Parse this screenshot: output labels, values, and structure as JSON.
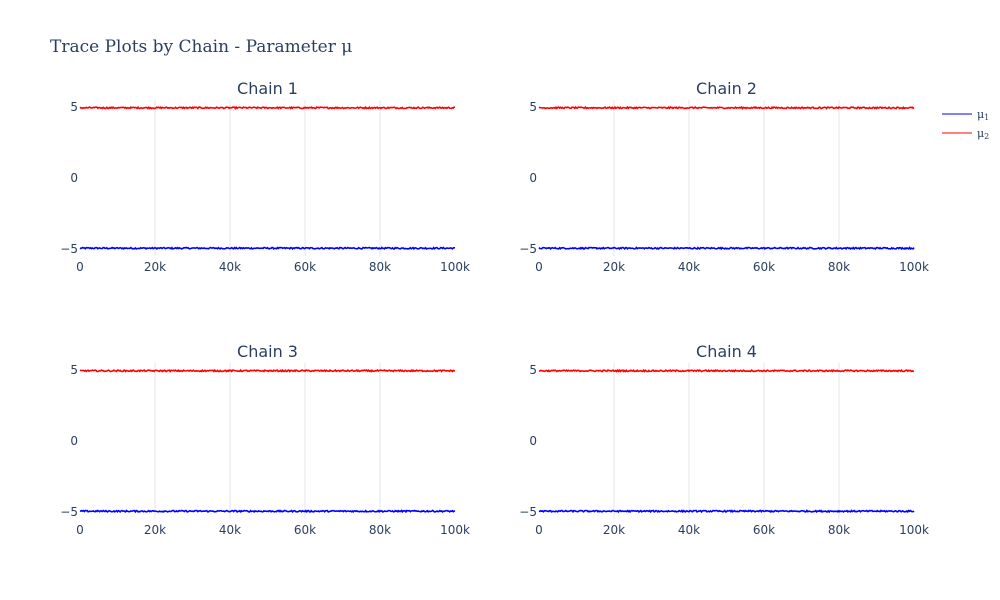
{
  "title": "Trace Plots by Chain - Parameter μ",
  "legend": [
    {
      "name": "μ",
      "sub": "1",
      "color": "#0000ff"
    },
    {
      "name": "μ",
      "sub": "2",
      "color": "#ff0000"
    }
  ],
  "chart_data": {
    "type": "line",
    "x_range": [
      0,
      100000
    ],
    "y_range": [
      -5.5,
      5.5
    ],
    "x_ticks": [
      0,
      20000,
      40000,
      60000,
      80000,
      100000
    ],
    "x_tick_labels": [
      "0",
      "20k",
      "40k",
      "60k",
      "80k",
      "100k"
    ],
    "y_ticks": [
      -5,
      0,
      5
    ],
    "y_tick_labels": [
      "−5",
      "0",
      "5"
    ],
    "grid": "vertical",
    "legend_position": "top-right",
    "panels": [
      {
        "title": "Chain 1",
        "series": [
          {
            "name": "μ1",
            "color": "#0000ff",
            "mean": -4.95,
            "spread": 0.05
          },
          {
            "name": "μ2",
            "color": "#ff0000",
            "mean": 4.95,
            "spread": 0.05
          }
        ]
      },
      {
        "title": "Chain 2",
        "series": [
          {
            "name": "μ1",
            "color": "#0000ff",
            "mean": -4.95,
            "spread": 0.05
          },
          {
            "name": "μ2",
            "color": "#ff0000",
            "mean": 4.95,
            "spread": 0.05
          }
        ]
      },
      {
        "title": "Chain 3",
        "series": [
          {
            "name": "μ1",
            "color": "#0000ff",
            "mean": -4.95,
            "spread": 0.05
          },
          {
            "name": "μ2",
            "color": "#ff0000",
            "mean": 4.95,
            "spread": 0.05
          }
        ]
      },
      {
        "title": "Chain 4",
        "series": [
          {
            "name": "μ1",
            "color": "#0000ff",
            "mean": -4.95,
            "spread": 0.05
          },
          {
            "name": "μ2",
            "color": "#ff0000",
            "mean": 4.95,
            "spread": 0.05
          }
        ]
      }
    ]
  }
}
